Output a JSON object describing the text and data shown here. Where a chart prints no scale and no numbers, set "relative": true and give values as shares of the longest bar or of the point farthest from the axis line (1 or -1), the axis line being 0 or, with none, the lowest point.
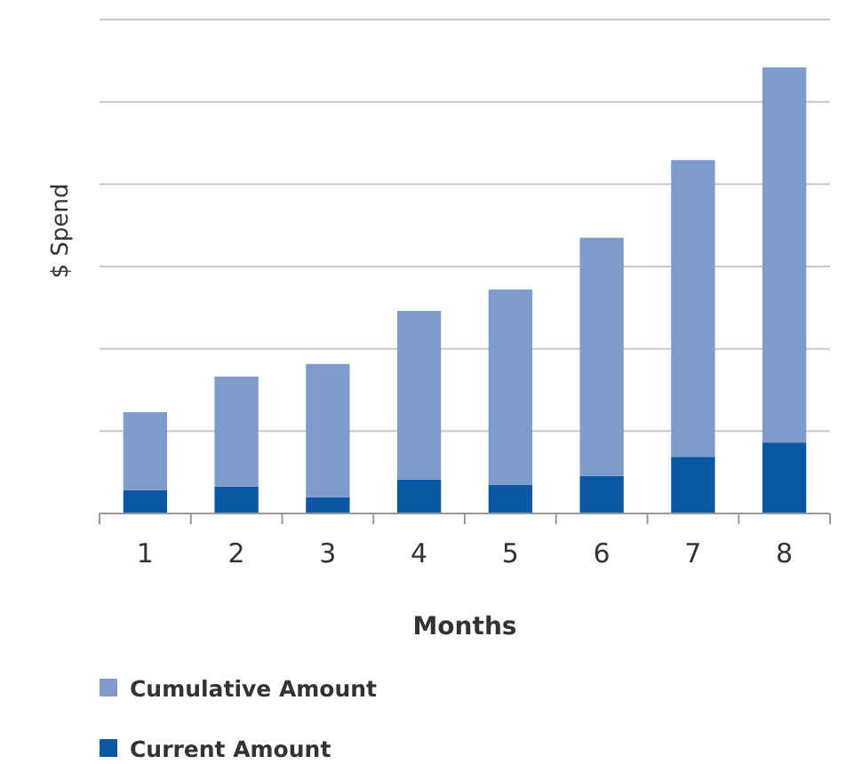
{
  "chart_data": {
    "type": "bar",
    "stacked": true,
    "relative": true,
    "xlabel": "Months",
    "ylabel": "$ Spend",
    "categories": [
      "1",
      "2",
      "3",
      "4",
      "5",
      "6",
      "7",
      "8"
    ],
    "series": [
      {
        "name": "Current Amount",
        "color": "#0b57a4",
        "values": [
          0.052,
          0.06,
          0.036,
          0.076,
          0.064,
          0.084,
          0.127,
          0.159
        ]
      },
      {
        "name": "Cumulative Amount",
        "color": "#7f9bcc",
        "values": [
          0.175,
          0.247,
          0.299,
          0.378,
          0.438,
          0.534,
          0.665,
          0.841
        ]
      }
    ],
    "grid": "y",
    "legend": "bottom"
  }
}
